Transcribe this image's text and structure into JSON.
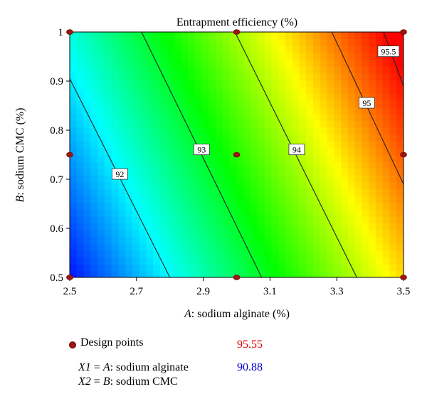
{
  "chart_data": {
    "type": "heatmap",
    "subtype": "contour",
    "title": "Entrapment efficiency (%)",
    "xlabel_italic": "A",
    "xlabel_rest": ": sodium alginate (%)",
    "ylabel_italic": "B",
    "ylabel_rest": ": sodium CMC (%)",
    "xlim": [
      2.5,
      3.5
    ],
    "ylim": [
      0.5,
      1.0
    ],
    "xticks": [
      "2.5",
      "2.7",
      "2.9",
      "3.1",
      "3.3",
      "3.5"
    ],
    "xtick_values": [
      2.5,
      2.7,
      2.9,
      3.1,
      3.3,
      3.5
    ],
    "yticks": [
      "0.5",
      "0.6",
      "0.7",
      "0.8",
      "0.9",
      "1"
    ],
    "ytick_values": [
      0.5,
      0.6,
      0.7,
      0.8,
      0.9,
      1.0
    ],
    "colorscale": {
      "min": 90.88,
      "max": 95.55,
      "min_label": "90.88",
      "max_label": "95.55",
      "min_color": "#0000ff",
      "max_color": "#ff0000"
    },
    "contours": [
      {
        "level": 92,
        "label": "92",
        "line": [
          [
            2.5,
            0.905
          ],
          [
            2.8,
            0.5
          ]
        ],
        "label_at": [
          2.65,
          0.71
        ]
      },
      {
        "level": 93,
        "label": "93",
        "line": [
          [
            2.715,
            1.0
          ],
          [
            3.075,
            0.5
          ]
        ],
        "label_at": [
          2.895,
          0.76
        ]
      },
      {
        "level": 94,
        "label": "94",
        "line": [
          [
            2.995,
            1.0
          ],
          [
            3.36,
            0.5
          ]
        ],
        "label_at": [
          3.18,
          0.76
        ]
      },
      {
        "level": 95,
        "label": "95",
        "line": [
          [
            3.285,
            1.0
          ],
          [
            3.5,
            0.69
          ]
        ],
        "label_at": [
          3.39,
          0.855
        ]
      },
      {
        "level": 95.5,
        "label": "95.5",
        "line": [
          [
            3.44,
            1.0
          ],
          [
            3.5,
            0.89
          ]
        ],
        "label_at": [
          3.455,
          0.96
        ]
      }
    ],
    "design_points": [
      {
        "x": 2.5,
        "y": 0.5
      },
      {
        "x": 3.0,
        "y": 0.5
      },
      {
        "x": 3.5,
        "y": 0.5
      },
      {
        "x": 2.5,
        "y": 0.75
      },
      {
        "x": 3.0,
        "y": 0.75
      },
      {
        "x": 3.5,
        "y": 0.75
      },
      {
        "x": 2.5,
        "y": 1.0
      },
      {
        "x": 3.0,
        "y": 1.0
      },
      {
        "x": 3.5,
        "y": 1.0
      }
    ]
  },
  "legend": {
    "design_points_label": "Design points",
    "x1_line": "X1 = A: sodium alginate",
    "x2_line": "X2 = B: sodium CMC",
    "x1_parts": [
      "X1",
      " = ",
      "A",
      ": sodium alginate"
    ],
    "x2_parts": [
      "X2",
      " = ",
      "B",
      ": sodium CMC"
    ]
  }
}
